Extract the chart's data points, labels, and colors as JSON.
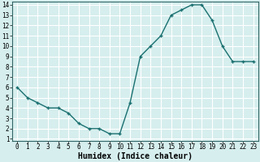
{
  "x": [
    0,
    1,
    2,
    3,
    4,
    5,
    6,
    7,
    8,
    9,
    10,
    11,
    12,
    13,
    14,
    15,
    16,
    17,
    18,
    19,
    20,
    21,
    22,
    23
  ],
  "y": [
    6.0,
    5.0,
    4.5,
    4.0,
    4.0,
    3.5,
    2.5,
    2.0,
    2.0,
    1.5,
    1.5,
    4.5,
    9.0,
    10.0,
    11.0,
    13.0,
    13.5,
    14.0,
    14.0,
    12.5,
    10.0,
    8.5,
    8.5,
    8.5
  ],
  "xlabel": "Humidex (Indice chaleur)",
  "ylim_min": 0.8,
  "ylim_max": 14.3,
  "xlim_min": -0.5,
  "xlim_max": 23.5,
  "line_color": "#1a7070",
  "bg_color": "#d6eeee",
  "grid_color": "#ffffff",
  "yticks": [
    1,
    2,
    3,
    4,
    5,
    6,
    7,
    8,
    9,
    10,
    11,
    12,
    13,
    14
  ],
  "xticks": [
    0,
    1,
    2,
    3,
    4,
    5,
    6,
    7,
    8,
    9,
    10,
    11,
    12,
    13,
    14,
    15,
    16,
    17,
    18,
    19,
    20,
    21,
    22,
    23
  ],
  "tick_fontsize": 5.5,
  "xlabel_fontsize": 7.0,
  "marker_size": 3.5,
  "linewidth": 1.0
}
